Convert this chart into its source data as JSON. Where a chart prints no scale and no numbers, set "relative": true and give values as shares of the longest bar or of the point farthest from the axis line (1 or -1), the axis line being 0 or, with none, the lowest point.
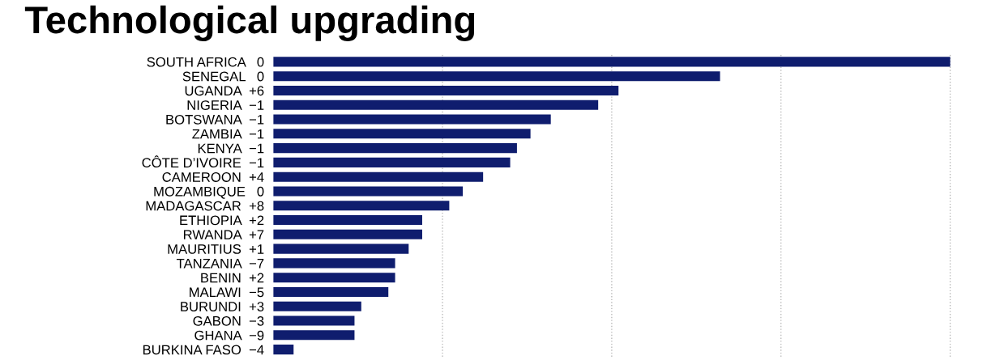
{
  "chart_data": {
    "type": "bar",
    "orientation": "horizontal",
    "relative": true,
    "title": "Technological upgrading",
    "categories": [
      "SOUTH AFRICA   0",
      "SENEGAL   0",
      "UGANDA  +6",
      "NIGERIA  −1",
      "BOTSWANA  −1",
      "ZAMBIA  −1",
      "KENYA  −1",
      "CÔTE D’IVOIRE  −1",
      "CAMEROON  +4",
      "MOZAMBIQUE   0",
      "MADAGASCAR  +8",
      "ETHIOPIA  +2",
      "RWANDA  +7",
      "MAURITIUS  +1",
      "TANZANIA  −7",
      "BENIN  +2",
      "MALAWI  −5",
      "BURUNDI  +3",
      "GABON  −3",
      "GHANA  −9",
      "BURKINA FASO  −4"
    ],
    "values": [
      1,
      0.66,
      0.51,
      0.48,
      0.41,
      0.38,
      0.36,
      0.35,
      0.31,
      0.28,
      0.26,
      0.22,
      0.22,
      0.2,
      0.18,
      0.18,
      0.17,
      0.13,
      0.12,
      0.12,
      0.03
    ],
    "color": "#0f1d6e",
    "grid": "x"
  }
}
